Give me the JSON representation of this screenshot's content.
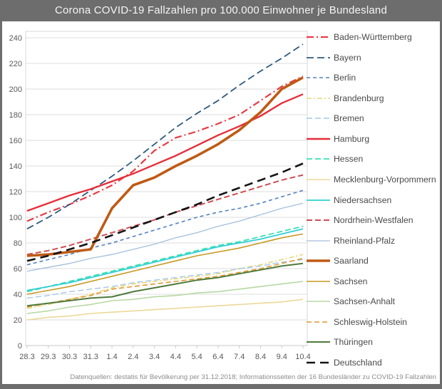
{
  "title": "Corona COVID-19 Fallzahlen pro 100.000 Einwohner je Bundesland",
  "footer": "Datenquellen: destatis für Bevölkerung per 31.12.2018; Informationsseiten der 16 Bundesländer zu COVID-19 Fallzahlen",
  "colors": {
    "frame": "#6d6d6d",
    "grid": "#dcdcdc",
    "axis_line": "#c9c9c9",
    "plot_border": "#d9d9d9",
    "axis_text": "#595959",
    "legend_text": "#4a4a4a",
    "footer_text": "#8c8c8c"
  },
  "y_axis": {
    "min": 0,
    "max": 240,
    "step": 20,
    "ticks": [
      0,
      20,
      40,
      60,
      80,
      100,
      120,
      140,
      160,
      180,
      200,
      220,
      240
    ]
  },
  "x_axis": {
    "labels": [
      "28.3",
      "29.3",
      "30.3",
      "31.3",
      "1.4",
      "2.4",
      "3.4",
      "4.4",
      "5.4",
      "6.4",
      "7.4",
      "8.4",
      "9.4",
      "10.4"
    ]
  },
  "chart_data": {
    "type": "line",
    "title": "Corona COVID-19 Fallzahlen pro 100.000 Einwohner je Bundesland",
    "xlabel": "",
    "ylabel": "",
    "ylim": [
      0,
      240
    ],
    "ytick_step": 20,
    "grid": true,
    "legend_position": "right",
    "x": [
      "28.3",
      "29.3",
      "30.3",
      "31.3",
      "1.4",
      "2.4",
      "3.4",
      "4.4",
      "5.4",
      "6.4",
      "7.4",
      "8.4",
      "9.4",
      "10.4"
    ],
    "series": [
      {
        "name": "Baden-Württemberg",
        "color": "#e63c44",
        "dash": "10 4 2 4",
        "width": 2.2,
        "values": [
          97,
          104,
          110,
          117,
          125,
          136,
          152,
          162,
          167,
          173,
          180,
          191,
          202,
          210
        ]
      },
      {
        "name": "Bayern",
        "color": "#2f5a7e",
        "dash": "10 5",
        "width": 1.8,
        "values": [
          91,
          100,
          110,
          121,
          132,
          144,
          157,
          170,
          181,
          191,
          203,
          214,
          224,
          235
        ]
      },
      {
        "name": "Berlin",
        "color": "#4f81bd",
        "dash": "5 4",
        "width": 1.6,
        "values": [
          63,
          67,
          71,
          76,
          80,
          85,
          90,
          95,
          100,
          104,
          107,
          111,
          116,
          121
        ]
      },
      {
        "name": "Brandenburg",
        "color": "#e6d87c",
        "dash": "7 3 2 3",
        "width": 1.6,
        "values": [
          29,
          32,
          36,
          40,
          45,
          48,
          50,
          52,
          54,
          56,
          60,
          63,
          67,
          71
        ]
      },
      {
        "name": "Bremen",
        "color": "#a4c7ea",
        "dash": "8 4",
        "width": 1.4,
        "values": [
          37,
          39,
          42,
          44,
          46,
          49,
          51,
          53,
          55,
          57,
          60,
          62,
          65,
          67
        ]
      },
      {
        "name": "Hamburg",
        "color": "#e62e39",
        "dash": "",
        "width": 2.4,
        "values": [
          105,
          111,
          117,
          122,
          128,
          134,
          141,
          148,
          156,
          164,
          171,
          179,
          189,
          196
        ]
      },
      {
        "name": "Hessen",
        "color": "#3ddfb0",
        "dash": "8 4",
        "width": 1.8,
        "values": [
          42,
          46,
          50,
          54,
          58,
          62,
          66,
          70,
          74,
          78,
          81,
          85,
          89,
          93
        ]
      },
      {
        "name": "Mecklenburg-Vorpommern",
        "color": "#ecd898",
        "dash": "",
        "width": 1.6,
        "values": [
          20,
          22,
          23,
          25,
          26,
          27,
          28,
          29,
          30,
          31,
          32,
          33,
          34,
          36
        ]
      },
      {
        "name": "Niedersachsen",
        "color": "#2fcfd3",
        "dash": "",
        "width": 1.8,
        "values": [
          43,
          46,
          49,
          53,
          57,
          61,
          65,
          69,
          73,
          77,
          80,
          83,
          87,
          91
        ]
      },
      {
        "name": "Nordrhein-Westfalen",
        "color": "#cc4f54",
        "dash": "8 4",
        "width": 2,
        "values": [
          71,
          74,
          78,
          83,
          88,
          93,
          98,
          104,
          109,
          114,
          119,
          124,
          129,
          133
        ]
      },
      {
        "name": "Rheinland-Pfalz",
        "color": "#a3bfdb",
        "dash": "",
        "width": 1.3,
        "values": [
          58,
          61,
          64,
          68,
          71,
          75,
          79,
          84,
          88,
          93,
          97,
          102,
          107,
          111
        ]
      },
      {
        "name": "Saarland",
        "color": "#bf5a14",
        "dash": "",
        "width": 3.6,
        "values": [
          70,
          71,
          73,
          75,
          107,
          125,
          131,
          140,
          148,
          157,
          168,
          182,
          200,
          209
        ]
      },
      {
        "name": "Sachsen",
        "color": "#c8991f",
        "dash": "",
        "width": 1.6,
        "values": [
          40,
          43,
          46,
          50,
          54,
          58,
          62,
          66,
          70,
          73,
          76,
          80,
          84,
          87
        ]
      },
      {
        "name": "Sachsen-Anhalt",
        "color": "#b7d8a4",
        "dash": "",
        "width": 1.6,
        "values": [
          25,
          27,
          30,
          32,
          35,
          36,
          38,
          39,
          41,
          42,
          44,
          46,
          48,
          50
        ]
      },
      {
        "name": "Schleswig-Holstein",
        "color": "#e2962f",
        "dash": "7 4",
        "width": 1.6,
        "values": [
          30,
          33,
          36,
          39,
          44,
          46,
          48,
          50,
          52,
          54,
          57,
          60,
          64,
          68
        ]
      },
      {
        "name": "Thüringen",
        "color": "#4d7a3a",
        "dash": "",
        "width": 2,
        "values": [
          31,
          33,
          35,
          37,
          38,
          42,
          45,
          48,
          51,
          53,
          56,
          59,
          62,
          64
        ]
      },
      {
        "name": "Deutschland",
        "color": "#141414",
        "dash": "12 7",
        "width": 2.6,
        "values": [
          66,
          70,
          75,
          80,
          86,
          92,
          98,
          104,
          110,
          117,
          123,
          129,
          135,
          142
        ]
      }
    ]
  }
}
